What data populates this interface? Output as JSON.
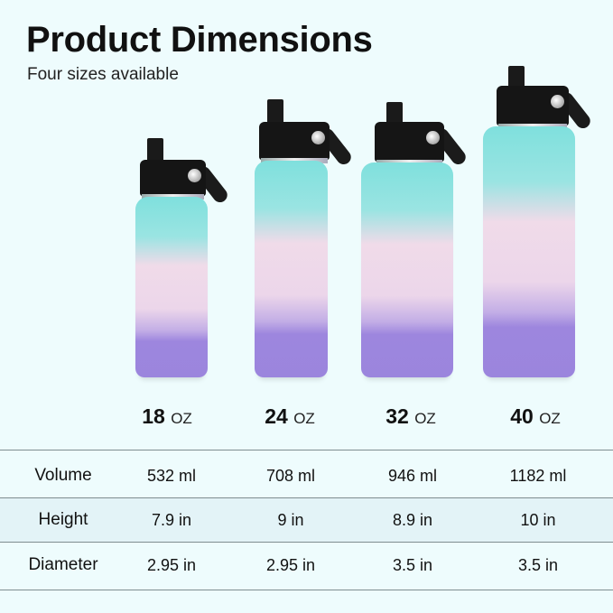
{
  "header": {
    "title": "Product Dimensions",
    "subtitle": "Four sizes available"
  },
  "colors": {
    "background": "#eefcfd",
    "band": "#e3f3f7",
    "teal": "#7fe0dd",
    "pink": "#ecd6ea",
    "purple": "#9b85dd",
    "cap": "#151515"
  },
  "sizes": [
    {
      "num": "18",
      "unit": "OZ"
    },
    {
      "num": "24",
      "unit": "OZ"
    },
    {
      "num": "32",
      "unit": "OZ"
    },
    {
      "num": "40",
      "unit": "OZ"
    }
  ],
  "table": {
    "rows": [
      {
        "label": "Volume",
        "values": [
          "532 ml",
          "708 ml",
          "946 ml",
          "1182 ml"
        ]
      },
      {
        "label": "Height",
        "values": [
          "7.9 in",
          "9 in",
          "8.9 in",
          "10 in"
        ]
      },
      {
        "label": "Diameter",
        "values": [
          "2.95 in",
          "2.95 in",
          "3.5 in",
          "3.5 in"
        ]
      }
    ]
  }
}
